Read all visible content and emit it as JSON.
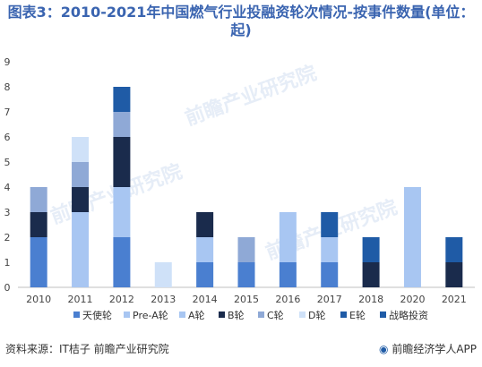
{
  "title_text": "图表3：2010-2021年中国燃气行业投融资轮次情况-按事件数量(单位：起)",
  "footer": {
    "source": "资料来源：IT桔子 前瞻产业研究院",
    "brand": "前瞻经济学人APP"
  },
  "watermark": "前瞻产业研究院",
  "chart_data": {
    "type": "bar",
    "stacked": true,
    "title": "图表3：2010-2021年中国燃气行业投融资轮次情况-按事件数量(单位：起)",
    "xlabel": "",
    "ylabel": "",
    "ylim": [
      0,
      9
    ],
    "yticks": [
      0,
      1,
      2,
      3,
      4,
      5,
      6,
      7,
      8,
      9
    ],
    "grid": false,
    "legend_position": "bottom",
    "categories": [
      "2010",
      "2011",
      "2012",
      "2013",
      "2014",
      "2015",
      "2016",
      "2017",
      "2018",
      "2020",
      "2021"
    ],
    "series": [
      {
        "name": "天使轮",
        "color": "#4a7fd0",
        "values": [
          2,
          0,
          2,
          0,
          1,
          1,
          1,
          1,
          0,
          0,
          0
        ]
      },
      {
        "name": "Pre-A轮",
        "color": "#a8c6f2",
        "values": [
          0,
          3,
          2,
          0,
          1,
          0,
          2,
          1,
          0,
          4,
          0
        ]
      },
      {
        "name": "A轮",
        "color": "#a8c6f2",
        "values": [
          0,
          0,
          0,
          0,
          0,
          0,
          0,
          0,
          0,
          0,
          0
        ]
      },
      {
        "name": "B轮",
        "color": "#1a2b4c",
        "values": [
          1,
          1,
          2,
          0,
          1,
          0,
          0,
          0,
          1,
          0,
          1
        ]
      },
      {
        "name": "C轮",
        "color": "#8fa9d6",
        "values": [
          1,
          1,
          1,
          0,
          0,
          1,
          0,
          0,
          0,
          0,
          0
        ]
      },
      {
        "name": "D轮",
        "color": "#cfe1f8",
        "values": [
          0,
          1,
          0,
          1,
          0,
          0,
          0,
          0,
          0,
          0,
          0
        ]
      },
      {
        "name": "E轮",
        "color": "#1f5ba6",
        "values": [
          0,
          0,
          0,
          0,
          0,
          0,
          0,
          0,
          0,
          0,
          0
        ]
      },
      {
        "name": "战略投资",
        "color": "#1f5ba6",
        "values": [
          0,
          0,
          1,
          0,
          0,
          0,
          0,
          1,
          1,
          0,
          1
        ]
      }
    ]
  }
}
